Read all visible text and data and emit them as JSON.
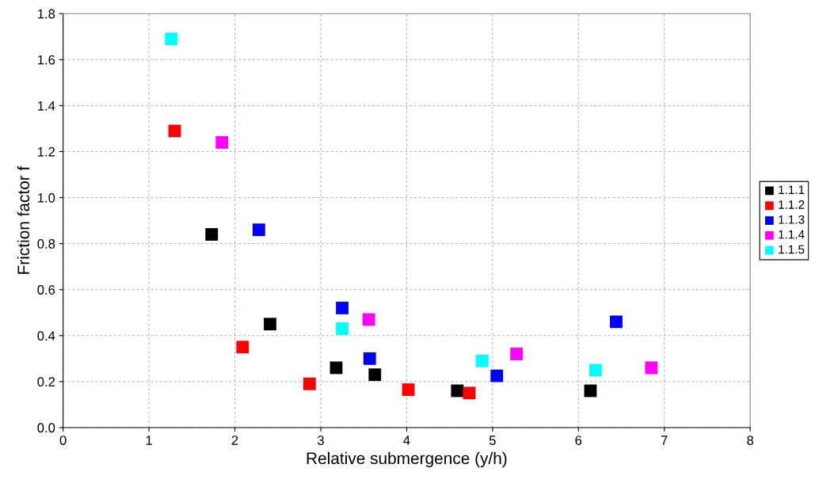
{
  "chart_data": {
    "type": "scatter",
    "xlabel": "Relative submergence (y/h)",
    "ylabel": "Friction factor f",
    "xlim": [
      0,
      8
    ],
    "xticks": [
      0,
      1,
      2,
      3,
      4,
      5,
      6,
      7,
      8
    ],
    "ylim": [
      0,
      1.8
    ],
    "yticks": [
      {
        "value": 0,
        "label": "0.0"
      },
      {
        "value": 0.2,
        "label": "0.2"
      },
      {
        "value": 0.4,
        "label": "0.4"
      },
      {
        "value": 0.6,
        "label": "0.6"
      },
      {
        "value": 0.8,
        "label": "0.8"
      },
      {
        "value": 1.0,
        "label": "1.0"
      },
      {
        "value": 1.2,
        "label": "1.2"
      },
      {
        "value": 1.4,
        "label": "1.4"
      },
      {
        "value": 1.6,
        "label": "1.6"
      },
      {
        "value": 1.8,
        "label": "1.8"
      }
    ],
    "grid": true,
    "legend": "right",
    "marker": "square",
    "series": [
      {
        "name": "1.1.1",
        "color": "#000000",
        "x": [
          1.73,
          2.41,
          3.18,
          3.63,
          4.59,
          6.14
        ],
        "values": [
          0.84,
          0.45,
          0.26,
          0.23,
          0.16,
          0.16
        ]
      },
      {
        "name": "1.1.2",
        "color": "#ff0000",
        "x": [
          1.3,
          2.09,
          2.87,
          4.02,
          4.73
        ],
        "values": [
          1.29,
          0.35,
          0.19,
          0.165,
          0.15
        ]
      },
      {
        "name": "1.1.3",
        "color": "#0000ff",
        "x": [
          2.28,
          3.25,
          3.57,
          5.05,
          6.44
        ],
        "values": [
          0.86,
          0.52,
          0.3,
          0.225,
          0.46
        ]
      },
      {
        "name": "1.1.4",
        "color": "#ff00ff",
        "x": [
          1.85,
          3.56,
          5.28,
          6.85
        ],
        "values": [
          1.24,
          0.47,
          0.32,
          0.26
        ]
      },
      {
        "name": "1.1.5",
        "color": "#00ffff",
        "x": [
          1.26,
          3.25,
          4.88,
          6.2
        ],
        "values": [
          1.69,
          0.43,
          0.29,
          0.25
        ]
      }
    ]
  }
}
